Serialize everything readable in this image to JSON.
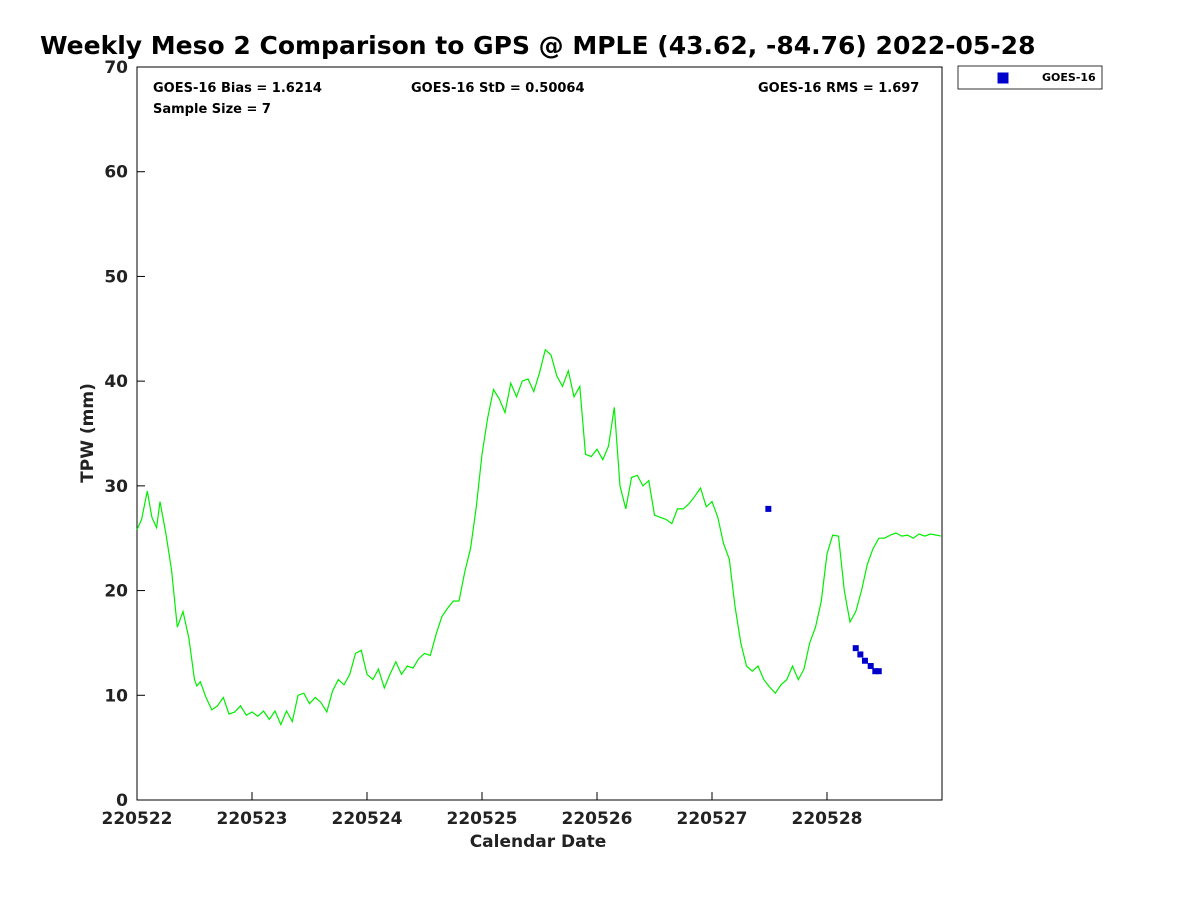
{
  "chart_data": {
    "type": "line",
    "title": "Weekly Meso 2 Comparison to GPS @ MPLE (43.62, -84.76) 2022-05-28",
    "xlabel": "Calendar Date",
    "ylabel": "TPW (mm)",
    "xlim": [
      0,
      7
    ],
    "ylim": [
      0,
      70
    ],
    "x_ticks": [
      0,
      1,
      2,
      3,
      4,
      5,
      6
    ],
    "x_tick_labels": [
      "220522",
      "220523",
      "220524",
      "220525",
      "220526",
      "220527",
      "220528"
    ],
    "y_ticks": [
      0,
      10,
      20,
      30,
      40,
      50,
      60,
      70
    ],
    "y_tick_labels": [
      "0",
      "10",
      "20",
      "30",
      "40",
      "50",
      "60",
      "70"
    ],
    "stats": {
      "bias": "GOES-16 Bias = 1.6214",
      "std": "GOES-16 StD = 0.50064",
      "rms": "GOES-16 RMS = 1.697",
      "sample": "Sample Size = 7"
    },
    "legend": {
      "placement": "top-right, outside plot",
      "entries": [
        "GOES-16"
      ]
    },
    "series": [
      {
        "name": "GPS",
        "color": "#00ee00",
        "x": [
          0,
          0.04,
          0.09,
          0.13,
          0.17,
          0.2,
          0.25,
          0.3,
          0.35,
          0.4,
          0.45,
          0.5,
          0.52,
          0.55,
          0.6,
          0.65,
          0.7,
          0.75,
          0.8,
          0.85,
          0.9,
          0.95,
          1.0,
          1.05,
          1.1,
          1.15,
          1.2,
          1.25,
          1.3,
          1.35,
          1.4,
          1.45,
          1.5,
          1.55,
          1.6,
          1.65,
          1.7,
          1.75,
          1.8,
          1.85,
          1.9,
          1.95,
          2.0,
          2.05,
          2.1,
          2.15,
          2.2,
          2.25,
          2.3,
          2.35,
          2.4,
          2.45,
          2.5,
          2.55,
          2.6,
          2.65,
          2.7,
          2.75,
          2.8,
          2.85,
          2.9,
          2.95,
          3.0,
          3.05,
          3.1,
          3.15,
          3.2,
          3.25,
          3.3,
          3.35,
          3.4,
          3.45,
          3.5,
          3.55,
          3.6,
          3.65,
          3.7,
          3.75,
          3.8,
          3.85,
          3.9,
          3.95,
          4.0,
          4.05,
          4.1,
          4.15,
          4.2,
          4.25,
          4.3,
          4.35,
          4.4,
          4.45,
          4.5,
          4.55,
          4.6,
          4.65,
          4.7,
          4.75,
          4.8,
          4.85,
          4.9,
          4.95,
          5.0,
          5.05,
          5.1,
          5.15,
          5.2,
          5.25,
          5.3,
          5.35,
          5.4,
          5.45,
          5.5,
          5.55,
          5.6,
          5.65,
          5.7,
          5.75,
          5.8,
          5.85,
          5.9,
          5.95,
          6.0,
          6.05,
          6.1,
          6.15,
          6.2,
          6.25,
          6.3,
          6.35,
          6.4,
          6.45,
          6.5,
          6.55,
          6.6,
          6.65,
          6.7,
          6.75,
          6.8,
          6.85,
          6.9,
          6.95,
          6.99
        ],
        "y": [
          25.8,
          26.8,
          29.5,
          27.0,
          26.0,
          28.5,
          25.5,
          22.0,
          16.5,
          18.0,
          15.5,
          11.5,
          10.9,
          11.3,
          9.8,
          8.6,
          9.0,
          9.8,
          8.2,
          8.4,
          9.0,
          8.1,
          8.4,
          8.0,
          8.5,
          7.7,
          8.5,
          7.2,
          8.5,
          7.5,
          10.0,
          10.2,
          9.2,
          9.8,
          9.3,
          8.4,
          10.4,
          11.5,
          11.0,
          12.0,
          14.0,
          14.3,
          12.0,
          11.5,
          12.5,
          10.7,
          12.0,
          13.2,
          12.0,
          12.8,
          12.6,
          13.5,
          14.0,
          13.8,
          15.8,
          17.5,
          18.3,
          19.0,
          19.0,
          21.8,
          24.0,
          28.0,
          33.0,
          36.5,
          39.2,
          38.3,
          37.0,
          39.8,
          38.5,
          40.0,
          40.2,
          39.0,
          40.8,
          43.0,
          42.5,
          40.5,
          39.5,
          41.0,
          38.5,
          39.5,
          33.0,
          32.8,
          33.5,
          32.5,
          33.8,
          37.5,
          30.0,
          27.8,
          30.8,
          31.0,
          30.0,
          30.5,
          27.2,
          27.0,
          26.8,
          26.4,
          27.8,
          27.8,
          28.3,
          29.0,
          29.8,
          28.0,
          28.5,
          27.0,
          24.5,
          23.0,
          18.5,
          15.0,
          12.8,
          12.3,
          12.8,
          11.5,
          10.8,
          10.2,
          11.0,
          11.5,
          12.8,
          11.5,
          12.5,
          15.0,
          16.5,
          19.0,
          23.5,
          25.3,
          25.2,
          20.0,
          17.0,
          18.0,
          20.0,
          22.5,
          24.0,
          25.0,
          25.0,
          25.3,
          25.5,
          25.2,
          25.3,
          25.0,
          25.4,
          25.2,
          25.4,
          25.3,
          25.2
        ],
        "marker": "none"
      },
      {
        "name": "GOES-16",
        "color": "#0000cc",
        "x": [
          5.49,
          6.25,
          6.29,
          6.33,
          6.38,
          6.42,
          6.45
        ],
        "y": [
          27.8,
          14.5,
          13.9,
          13.3,
          12.8,
          12.3,
          12.3
        ],
        "marker": "square"
      }
    ]
  }
}
